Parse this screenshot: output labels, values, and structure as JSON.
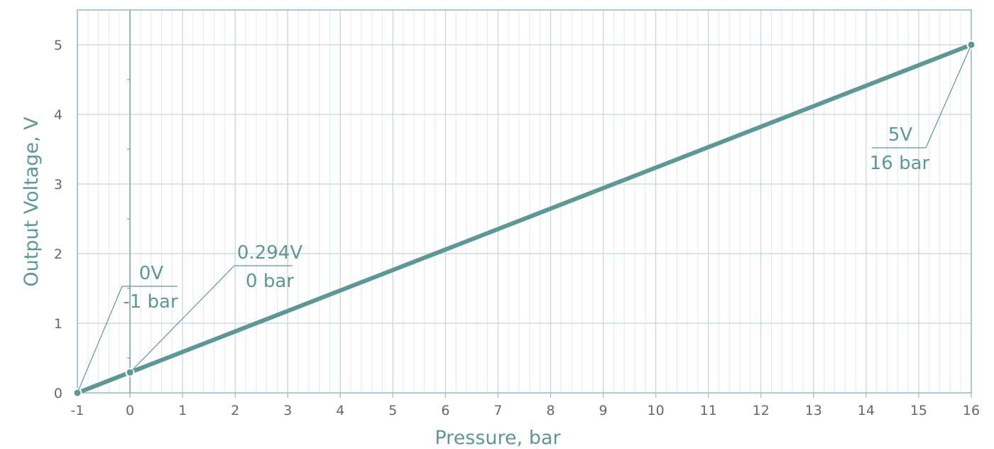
{
  "chart_data": {
    "type": "line",
    "title": "",
    "xlabel": "Pressure, bar",
    "ylabel": "Output Voltage, V",
    "xlim": [
      -1,
      16
    ],
    "ylim": [
      0,
      5.5
    ],
    "x_ticks": [
      "-1",
      "0",
      "1",
      "2",
      "3",
      "4",
      "5",
      "6",
      "7",
      "8",
      "9",
      "10",
      "11",
      "12",
      "13",
      "14",
      "15",
      "16"
    ],
    "y_ticks": [
      "0",
      "1",
      "2",
      "3",
      "4",
      "5"
    ],
    "grid": true,
    "series": [
      {
        "x": [
          -1,
          0,
          16
        ],
        "y": [
          0,
          0.294,
          5
        ]
      }
    ],
    "annotations": [
      {
        "x": -1,
        "y": 0,
        "top": "0V",
        "bottom": "-1 bar"
      },
      {
        "x": 0,
        "y": 0.294,
        "top": "0.294V",
        "bottom": "0 bar"
      },
      {
        "x": 16,
        "y": 5,
        "top": "5V",
        "bottom": "16 bar"
      }
    ],
    "colors": {
      "line": "#5e9896",
      "grid_major": "#c3d4dc",
      "grid_minor": "#e2ebef",
      "axis": "#9ab5c4",
      "text": "#5e9896"
    }
  }
}
